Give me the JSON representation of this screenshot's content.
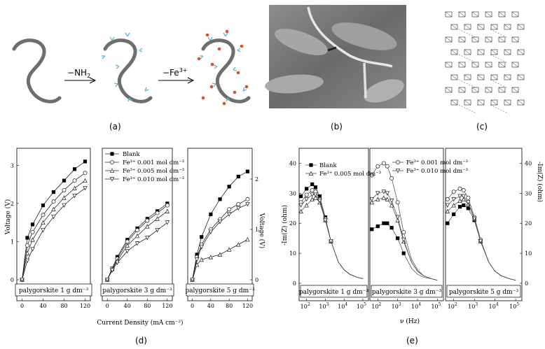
{
  "panel_a": {
    "caption": "(a)",
    "step1_label": "NH",
    "step1_sub": "2",
    "step1_prefix": "−",
    "step2_label": "−Fe",
    "step2_sup": "3+"
  },
  "panel_b": {
    "caption": "(b)"
  },
  "panel_c": {
    "caption": "(c)"
  },
  "panel_d": {
    "caption": "(d)",
    "ylabel_left": "Voltage (V)",
    "ylabel_right": "Voltage (V)",
    "xlabel": "Current Density (mA cm⁻²)",
    "legend": [
      "Blank",
      "Fe³⁺ 0.001 mol dm⁻³",
      "Fe³⁺ 0.005 mol dm⁻³",
      "Fe³⁺ 0.010 mol dm⁻³"
    ],
    "subpanels": [
      "palygorskite 1 g dm⁻³",
      "palygorskite 3 g dm⁻³",
      "palygorskite 5 g dm⁻³"
    ],
    "xticks": [
      "0",
      "40",
      "80",
      "120"
    ],
    "yticks_left": [
      "0",
      "1",
      "2",
      "3"
    ],
    "yticks_right": [
      "0",
      "1",
      "2"
    ]
  },
  "panel_e": {
    "caption": "(e)",
    "ylabel_left": "-Im(Z) (ohm)",
    "ylabel_right": "-Im(Z) (ohm)",
    "xlabel": "ν (Hz)",
    "legend": [
      "Blank",
      "Fe³⁺ 0.005 mol dm⁻³",
      "Fe³⁺ 0.001 mol dm⁻³",
      "Fe³⁺ 0.010 mol dm⁻³"
    ],
    "subpanels": [
      "palygorskite 1 g dm⁻³",
      "palygorskite 3 g dm⁻³",
      "palygorskite 5 g dm⁻³"
    ],
    "yticks_left": [
      "0",
      "10",
      "20",
      "30",
      "40"
    ],
    "yticks_right": [
      "0",
      "10",
      "20",
      "30",
      "40"
    ],
    "xtick_base": "10",
    "xtick_exps": [
      "2",
      "3",
      "4",
      "5"
    ]
  },
  "chart_data": [
    {
      "type": "line",
      "xlabel": "Current Density (mA cm⁻²)",
      "ylabel": "Voltage (V)",
      "subpanel": "palygorskite 1 g dm⁻³",
      "xlim": [
        -10,
        130
      ],
      "ylim": [
        0,
        3.3
      ],
      "x": [
        0,
        10,
        20,
        40,
        60,
        80,
        100,
        120
      ],
      "series": [
        {
          "name": "Blank",
          "values": [
            0,
            1.1,
            1.45,
            1.95,
            2.3,
            2.6,
            2.9,
            3.1
          ]
        },
        {
          "name": "Fe³⁺ 0.001 mol dm⁻³",
          "values": [
            0,
            0.9,
            1.25,
            1.7,
            2.05,
            2.35,
            2.6,
            2.8
          ]
        },
        {
          "name": "Fe³⁺ 0.005 mol dm⁻³",
          "values": [
            0,
            0.7,
            1.05,
            1.5,
            1.85,
            2.15,
            2.4,
            2.6
          ]
        },
        {
          "name": "Fe³⁺ 0.010 mol dm⁻³",
          "values": [
            0,
            0.5,
            0.8,
            1.3,
            1.65,
            1.95,
            2.2,
            2.4
          ]
        }
      ]
    },
    {
      "type": "line",
      "subpanel": "palygorskite 3 g dm⁻³",
      "xlim": [
        -10,
        130
      ],
      "ylim": [
        0,
        3.3
      ],
      "x": [
        0,
        10,
        20,
        40,
        60,
        80,
        100,
        120
      ],
      "series": [
        {
          "name": "Blank",
          "values": [
            0,
            0.3,
            0.6,
            1.05,
            1.35,
            1.6,
            1.8,
            2.0
          ]
        },
        {
          "name": "Fe³⁺ 0.001 mol dm⁻³",
          "values": [
            0,
            0.3,
            0.55,
            1.0,
            1.3,
            1.55,
            1.75,
            1.95
          ]
        },
        {
          "name": "Fe³⁺ 0.005 mol dm⁻³",
          "values": [
            0,
            0.28,
            0.5,
            0.9,
            1.15,
            1.4,
            1.6,
            1.8
          ]
        },
        {
          "name": "Fe³⁺ 0.010 mol dm⁻³",
          "values": [
            0,
            0.25,
            0.45,
            0.75,
            0.95,
            1.1,
            1.3,
            1.5
          ]
        }
      ]
    },
    {
      "type": "line",
      "ylabel": "Voltage (V)",
      "subpanel": "palygorskite 5 g dm⁻³",
      "xlim": [
        -10,
        130
      ],
      "ylim": [
        0,
        2.5
      ],
      "x": [
        0,
        10,
        20,
        40,
        60,
        80,
        100,
        120
      ],
      "series": [
        {
          "name": "Blank",
          "values": [
            0,
            0.5,
            0.85,
            1.3,
            1.6,
            1.85,
            2.05,
            2.15
          ]
        },
        {
          "name": "Fe³⁺ 0.001 mol dm⁻³",
          "values": [
            0,
            0.45,
            0.7,
            1.0,
            1.2,
            1.4,
            1.5,
            1.6
          ]
        },
        {
          "name": "Fe³⁺ 0.005 mol dm⁻³",
          "values": [
            0,
            0.3,
            0.4,
            0.45,
            0.5,
            0.6,
            0.7,
            0.8
          ]
        },
        {
          "name": "Fe³⁺ 0.010 mol dm⁻³",
          "values": [
            0,
            0.4,
            0.65,
            0.95,
            1.15,
            1.3,
            1.42,
            1.5
          ]
        }
      ]
    },
    {
      "type": "line",
      "xlabel": "ν (Hz)",
      "ylabel": "-Im(Z) (ohm)",
      "subpanel": "palygorskite 1 g dm⁻³",
      "xscale": "log",
      "xlim": [
        40,
        200000
      ],
      "ylim": [
        0,
        45
      ],
      "x": [
        50,
        100,
        200,
        300,
        500,
        1000,
        2000,
        5000,
        10000,
        20000,
        50000,
        100000
      ],
      "series": [
        {
          "name": "Blank",
          "values": [
            29,
            31.5,
            33,
            32,
            29,
            22,
            14,
            7,
            4.5,
            3,
            2,
            1.5
          ]
        },
        {
          "name": "Fe³⁺ 0.005 mol dm⁻³",
          "values": [
            24,
            26,
            28,
            28.5,
            27,
            21,
            14,
            7,
            4.5,
            3,
            2,
            1.5
          ]
        },
        {
          "name": "Fe³⁺ 0.001 mol dm⁻³",
          "values": [
            27,
            29.5,
            31,
            30.5,
            28,
            21.5,
            14,
            7,
            4.5,
            3,
            2,
            1.5
          ]
        },
        {
          "name": "Fe³⁺ 0.010 mol dm⁻³",
          "values": [
            26,
            28,
            29.5,
            29.5,
            27.5,
            21,
            14,
            7,
            4.5,
            3,
            2,
            1.5
          ]
        }
      ]
    },
    {
      "type": "line",
      "subpanel": "palygorskite 3 g dm⁻³",
      "xscale": "log",
      "xlim": [
        40,
        200000
      ],
      "ylim": [
        0,
        45
      ],
      "x": [
        50,
        100,
        200,
        300,
        500,
        1000,
        2000,
        5000,
        10000,
        20000,
        50000,
        100000
      ],
      "series": [
        {
          "name": "Blank",
          "values": [
            18,
            19,
            20,
            20,
            18.5,
            15,
            10,
            5,
            3,
            2,
            1.5,
            1
          ]
        },
        {
          "name": "Fe³⁺ 0.005 mol dm⁻³",
          "values": [
            27,
            28,
            28.5,
            28,
            26,
            21,
            14,
            7,
            4,
            2.5,
            1.5,
            1
          ]
        },
        {
          "name": "Fe³⁺ 0.001 mol dm⁻³",
          "values": [
            36,
            39,
            40,
            39,
            35,
            27,
            17,
            8,
            4.5,
            2.5,
            1.5,
            1
          ]
        },
        {
          "name": "Fe³⁺ 0.010 mol dm⁻³",
          "values": [
            28,
            30,
            30.5,
            30,
            27.5,
            22,
            14.5,
            7,
            4,
            2.5,
            1.5,
            1
          ]
        }
      ]
    },
    {
      "type": "line",
      "ylabel": "-Im(Z) (ohm)",
      "subpanel": "palygorskite 5 g dm⁻³",
      "xscale": "log",
      "xlim": [
        40,
        200000
      ],
      "ylim": [
        0,
        45
      ],
      "x": [
        50,
        100,
        200,
        300,
        500,
        1000,
        2000,
        5000,
        10000,
        20000,
        50000,
        100000
      ],
      "series": [
        {
          "name": "Blank",
          "values": [
            20,
            23,
            25.5,
            26,
            25,
            21,
            14,
            7,
            4,
            2.5,
            1.5,
            1
          ]
        },
        {
          "name": "Fe³⁺ 0.005 mol dm⁻³",
          "values": [
            24,
            26,
            27.5,
            28,
            26.5,
            21.5,
            14,
            7,
            4,
            2.5,
            1.5,
            1
          ]
        },
        {
          "name": "Fe³⁺ 0.001 mol dm⁻³",
          "values": [
            28,
            30.5,
            31.5,
            31,
            28.5,
            22,
            14.5,
            7,
            4,
            2.5,
            1.5,
            1
          ]
        },
        {
          "name": "Fe³⁺ 0.010 mol dm⁻³",
          "values": [
            26,
            28,
            29,
            29,
            27,
            21.5,
            14,
            7,
            4,
            2.5,
            1.5,
            1
          ]
        }
      ]
    }
  ]
}
